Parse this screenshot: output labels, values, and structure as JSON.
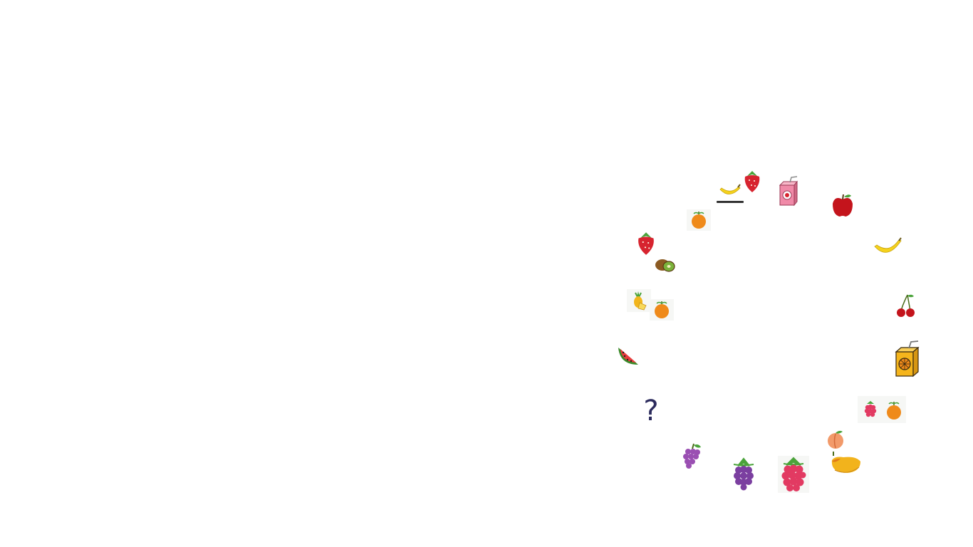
{
  "puzzle": {
    "question_mark": "?"
  },
  "items": [
    {
      "name": "banana-small"
    },
    {
      "name": "strawberry-top"
    },
    {
      "name": "juice-box-pink"
    },
    {
      "name": "apple"
    },
    {
      "name": "orange-top"
    },
    {
      "name": "strawberry-left"
    },
    {
      "name": "banana-right"
    },
    {
      "name": "kiwi"
    },
    {
      "name": "pineapple"
    },
    {
      "name": "orange-left"
    },
    {
      "name": "cherries"
    },
    {
      "name": "watermelon-slice"
    },
    {
      "name": "juice-box-orange"
    },
    {
      "name": "raspberry-small"
    },
    {
      "name": "orange-right"
    },
    {
      "name": "peach"
    },
    {
      "name": "grapes"
    },
    {
      "name": "blackberry"
    },
    {
      "name": "raspberry-large"
    },
    {
      "name": "mango"
    }
  ],
  "colors": {
    "question": "#2b2a5c",
    "strawberry": "#d7242f",
    "orange": "#ef8a1a",
    "banana": "#f5d21c",
    "grape": "#9a4fb2",
    "raspberry": "#e23a62",
    "leaf": "#4aa33a"
  }
}
